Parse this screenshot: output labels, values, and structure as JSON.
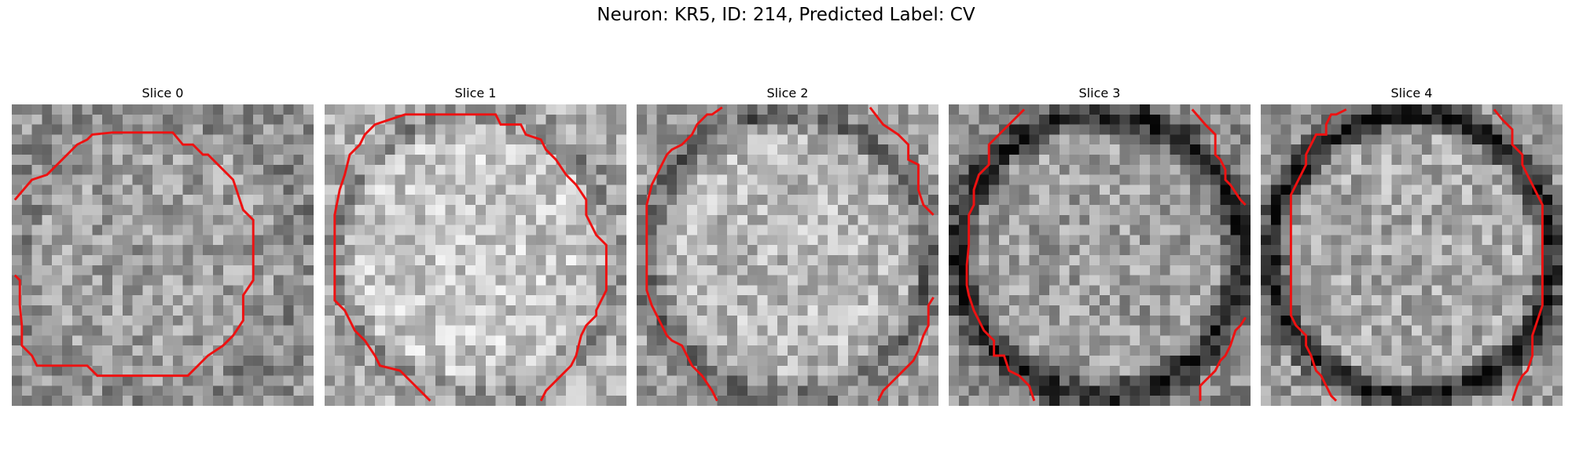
{
  "figure": {
    "title": "Neuron: KR5, ID: 214, Predicted Label: CV"
  },
  "colors": {
    "contour": "#ee1111"
  },
  "grid_size": 30,
  "panels": [
    {
      "title": "Slice 0",
      "seed": 11,
      "brightness": 0.62,
      "ring": 0.1,
      "rim_dark": 0.05
    },
    {
      "title": "Slice 1",
      "seed": 23,
      "brightness": 0.78,
      "ring": 0.25,
      "rim_dark": 0.08
    },
    {
      "title": "Slice 2",
      "seed": 37,
      "brightness": 0.72,
      "ring": 0.35,
      "rim_dark": 0.1
    },
    {
      "title": "Slice 3",
      "seed": 41,
      "brightness": 0.62,
      "ring": 0.55,
      "rim_dark": 0.08
    },
    {
      "title": "Slice 4",
      "seed": 53,
      "brightness": 0.66,
      "ring": 0.6,
      "rim_dark": 0.06
    }
  ]
}
